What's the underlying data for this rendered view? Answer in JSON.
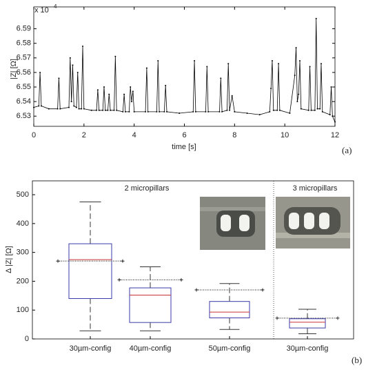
{
  "chart_data": [
    {
      "type": "line",
      "xlabel": "time [s]",
      "ylabel": "|Z|  [Ω]",
      "offset_text": "x 10",
      "offset_exponent": "4",
      "panel_label": "(a)",
      "color": "#000000",
      "x": [
        0,
        0.2,
        0.25,
        0.3,
        0.6,
        0.95,
        1.0,
        1.05,
        1.4,
        1.45,
        1.5,
        1.55,
        1.6,
        1.7,
        1.75,
        1.8,
        1.9,
        1.95,
        2.0,
        2.3,
        2.5,
        2.55,
        2.6,
        2.75,
        2.8,
        2.85,
        2.95,
        3.0,
        3.05,
        3.2,
        3.25,
        3.3,
        3.55,
        3.6,
        3.65,
        3.8,
        3.85,
        3.9,
        3.95,
        4.0,
        4.45,
        4.5,
        4.55,
        4.9,
        4.95,
        5.0,
        5.2,
        5.25,
        5.3,
        5.8,
        6.35,
        6.4,
        6.45,
        6.85,
        6.9,
        6.95,
        7.4,
        7.45,
        7.5,
        7.7,
        7.75,
        7.8,
        7.9,
        8.0,
        8.5,
        9.0,
        9.4,
        9.45,
        9.5,
        9.55,
        9.7,
        9.75,
        9.8,
        10.2,
        10.4,
        10.45,
        10.5,
        10.55,
        10.6,
        10.65,
        10.95,
        11.0,
        11.05,
        11.2,
        11.25,
        11.3,
        11.4,
        11.45,
        11.5,
        11.8,
        11.85,
        11.9,
        12.0
      ],
      "values": [
        6.536,
        6.537,
        6.56,
        6.537,
        6.535,
        6.535,
        6.556,
        6.535,
        6.536,
        6.57,
        6.54,
        6.565,
        6.537,
        6.536,
        6.56,
        6.535,
        6.535,
        6.578,
        6.535,
        6.534,
        6.534,
        6.548,
        6.534,
        6.534,
        6.55,
        6.534,
        6.534,
        6.545,
        6.534,
        6.534,
        6.571,
        6.534,
        6.533,
        6.545,
        6.533,
        6.533,
        6.55,
        6.54,
        6.547,
        6.533,
        6.533,
        6.563,
        6.533,
        6.533,
        6.568,
        6.533,
        6.533,
        6.551,
        6.533,
        6.532,
        6.533,
        6.568,
        6.533,
        6.533,
        6.564,
        6.533,
        6.533,
        6.556,
        6.533,
        6.534,
        6.566,
        6.534,
        6.544,
        6.533,
        6.532,
        6.531,
        6.533,
        6.549,
        6.568,
        6.534,
        6.534,
        6.566,
        6.534,
        6.532,
        6.558,
        6.577,
        6.54,
        6.545,
        6.568,
        6.535,
        6.534,
        6.564,
        6.534,
        6.534,
        6.597,
        6.535,
        6.535,
        6.566,
        6.533,
        6.531,
        6.55,
        6.53,
        6.526
      ],
      "xlim": [
        0,
        12
      ],
      "xticks": [
        0,
        2,
        4,
        6,
        8,
        10,
        12
      ],
      "ylim": [
        6.523,
        6.605
      ],
      "yticks": [
        6.53,
        6.54,
        6.55,
        6.56,
        6.57,
        6.58,
        6.59
      ]
    },
    {
      "type": "box",
      "ylabel": "Δ |Z|  [Ω]",
      "panel_label": "(b)",
      "annotations": [
        "2 micropillars",
        "3 micropillars"
      ],
      "categories": [
        "30µm-config",
        "40µm-config",
        "50µm-config",
        "30µm-config"
      ],
      "box_color": "#3a3aa8",
      "median_color": "#c83232",
      "boxes": [
        {
          "whislo": 28,
          "q1": 140,
          "med": 275,
          "q3": 330,
          "whishi": 475,
          "mean": 270
        },
        {
          "whislo": 28,
          "q1": 57,
          "med": 152,
          "q3": 177,
          "whishi": 250,
          "mean": 205
        },
        {
          "whislo": 33,
          "q1": 73,
          "med": 93,
          "q3": 130,
          "whishi": 192,
          "mean": 170
        },
        {
          "whislo": 18,
          "q1": 38,
          "med": 58,
          "q3": 70,
          "whishi": 103,
          "mean": 72
        }
      ],
      "ylim": [
        0,
        548
      ],
      "yticks": [
        0,
        100,
        200,
        300,
        400,
        500
      ]
    }
  ]
}
